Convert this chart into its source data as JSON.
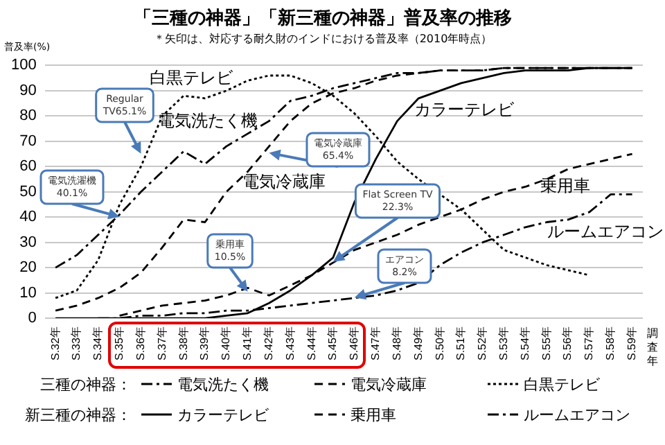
{
  "chart_data": {
    "type": "line",
    "title": "「三種の神器」「新三種の神器」普及率の推移",
    "subtitle": "＊矢印は、対応する耐久財のインドにおける普及率（2010年時点）",
    "ylabel": "普及率(%)",
    "xlabel": "調査年",
    "categories": [
      "S.32年",
      "S.33年",
      "S.34年",
      "S.35年",
      "S.36年",
      "S.37年",
      "S.38年",
      "S.39年",
      "S.40年",
      "S.41年",
      "S.42年",
      "S.43年",
      "S.44年",
      "S.45年",
      "S.46年",
      "S.47年",
      "S.48年",
      "S.49年",
      "S.50年",
      "S.51年",
      "S.52年",
      "S.53年",
      "S.54年",
      "S.55年",
      "S.56年",
      "S.57年",
      "S.58年",
      "S.59年"
    ],
    "series": [
      {
        "name": "電気洗たく機",
        "color": "#000000",
        "line_style": "dashdot",
        "values": [
          20,
          25,
          33,
          41,
          50,
          58,
          66,
          61,
          68,
          73,
          78,
          86,
          88,
          91,
          93,
          95,
          97,
          97,
          98,
          98,
          98,
          99,
          99,
          99,
          99,
          99,
          99,
          99
        ]
      },
      {
        "name": "電気冷蔵庫",
        "color": "#000000",
        "line_style": "dashed",
        "values": [
          3,
          5,
          8,
          12,
          18,
          28,
          39,
          38,
          50,
          58,
          68,
          78,
          85,
          89,
          91,
          94,
          96,
          97,
          98,
          98,
          98,
          99,
          99,
          99,
          99,
          99,
          99,
          99
        ]
      },
      {
        "name": "白黒テレビ",
        "color": "#000000",
        "line_style": "dotted",
        "values": [
          8,
          11,
          23,
          45,
          60,
          80,
          88,
          87,
          90,
          94,
          96,
          96,
          93,
          88,
          81,
          72,
          62,
          55,
          49,
          43,
          35,
          27,
          24,
          21,
          19,
          17,
          null,
          null
        ]
      },
      {
        "name": "カラーテレビ",
        "color": "#000000",
        "line_style": "solid",
        "values": [
          0,
          0,
          0,
          0,
          0,
          0,
          0,
          0,
          1,
          2,
          6,
          11,
          17,
          24,
          46,
          63,
          78,
          87,
          90,
          93,
          95,
          97,
          98,
          98,
          98,
          99,
          99,
          99
        ]
      },
      {
        "name": "乗用車",
        "color": "#000000",
        "line_style": "dashed",
        "values": [
          null,
          null,
          null,
          1,
          3,
          5,
          6,
          7,
          9,
          12,
          9,
          13,
          17,
          22,
          27,
          30,
          33,
          37,
          40,
          43,
          47,
          50,
          52,
          55,
          59,
          61,
          63,
          65
        ]
      },
      {
        "name": "ルームエアコン",
        "color": "#000000",
        "line_style": "dashdot",
        "values": [
          null,
          null,
          0,
          0,
          1,
          1,
          2,
          2,
          3,
          3,
          4,
          5,
          6,
          7,
          8,
          9,
          11,
          14,
          21,
          26,
          30,
          33,
          36,
          38,
          39,
          42,
          49,
          49
        ]
      }
    ],
    "ylim": [
      0,
      100
    ],
    "yticks": [
      0,
      10,
      20,
      30,
      40,
      50,
      60,
      70,
      80,
      90,
      100
    ],
    "grid": "y",
    "legend": "bottom",
    "marker": "none",
    "annotations": [
      {
        "text": "Regular\nTV65.1%",
        "x": "S.36年",
        "y": 65.1
      },
      {
        "text": "電気洗濯機\n40.1%",
        "x": "S.35年",
        "y": 40.1
      },
      {
        "text": "電気冷蔵庫\n65.4%",
        "x": "S.42年",
        "y": 65.4
      },
      {
        "text": "乗用車\n10.5%",
        "x": "S.41年",
        "y": 10.5
      },
      {
        "text": "Flat Screen TV\n22.3%",
        "x": "S.45年",
        "y": 22.3
      },
      {
        "text": "エアコン\n8.2%",
        "x": "S.46年",
        "y": 8.2
      },
      "三種の神器：",
      "新三種の神器："
    ]
  }
}
